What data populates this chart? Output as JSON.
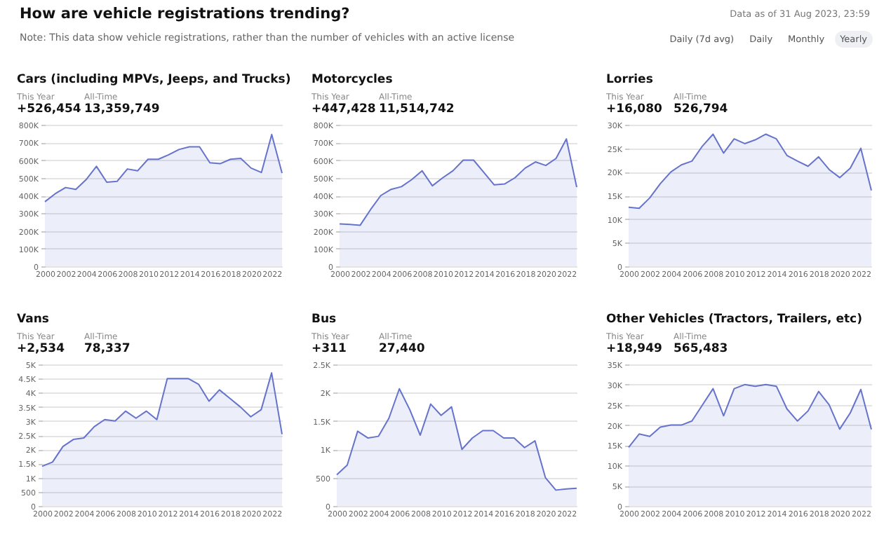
{
  "chart_data": [
    {
      "type": "other",
      "title": "How are vehicle registrations trending?",
      "subtitle": "Note: This data show vehicle registrations, rather than the number of vehicles with an active license",
      "annotations": [
        "Data as of 31 Aug 2023, 23:59",
        "Daily (7d avg)",
        "Daily",
        "Monthly",
        "Yearly"
      ]
    },
    {
      "type": "area",
      "title": "Cars (including MPVs, Jeeps, and Trucks)",
      "annotations": [
        "This Year",
        "+526,454",
        "All-Time",
        "13,359,749"
      ],
      "x": [
        2000,
        2001,
        2002,
        2003,
        2004,
        2005,
        2006,
        2007,
        2008,
        2009,
        2010,
        2011,
        2012,
        2013,
        2014,
        2015,
        2016,
        2017,
        2018,
        2019,
        2020,
        2021,
        2022,
        2023
      ],
      "series": [
        {
          "color": "#6673cc",
          "values": [
            365000,
            410000,
            445000,
            435000,
            490000,
            565000,
            475000,
            480000,
            550000,
            540000,
            605000,
            605000,
            630000,
            660000,
            675000,
            675000,
            585000,
            580000,
            605000,
            610000,
            555000,
            530000,
            745000,
            526454
          ]
        }
      ],
      "xlim": [
        2000,
        2023
      ],
      "xticks": [
        2000,
        2002,
        2004,
        2006,
        2008,
        2010,
        2012,
        2014,
        2016,
        2018,
        2020,
        2022
      ],
      "ylim": [
        0,
        800000
      ],
      "yticks": [
        {
          "value": 0,
          "label": "0"
        },
        {
          "value": 100000,
          "label": "100K"
        },
        {
          "value": 200000,
          "label": "200K"
        },
        {
          "value": 300000,
          "label": "300K"
        },
        {
          "value": 400000,
          "label": "400K"
        },
        {
          "value": 500000,
          "label": "500K"
        },
        {
          "value": 600000,
          "label": "600K"
        },
        {
          "value": 700000,
          "label": "700K"
        },
        {
          "value": 800000,
          "label": "800K"
        }
      ],
      "grid": "y"
    },
    {
      "type": "area",
      "title": "Motorcycles",
      "annotations": [
        "This Year",
        "+447,428",
        "All-Time",
        "11,514,742"
      ],
      "x": [
        2000,
        2001,
        2002,
        2003,
        2004,
        2005,
        2006,
        2007,
        2008,
        2009,
        2010,
        2011,
        2012,
        2013,
        2014,
        2015,
        2016,
        2017,
        2018,
        2019,
        2020,
        2021,
        2022,
        2023
      ],
      "series": [
        {
          "color": "#6673cc",
          "values": [
            240000,
            237000,
            232000,
            320000,
            400000,
            435000,
            450000,
            490000,
            540000,
            455000,
            500000,
            540000,
            600000,
            600000,
            530000,
            460000,
            465000,
            500000,
            555000,
            590000,
            570000,
            610000,
            720000,
            447428
          ]
        }
      ],
      "xlim": [
        2000,
        2023
      ],
      "xticks": [
        2000,
        2002,
        2004,
        2006,
        2008,
        2010,
        2012,
        2014,
        2016,
        2018,
        2020,
        2022
      ],
      "ylim": [
        0,
        800000
      ],
      "yticks": [
        {
          "value": 0,
          "label": "0"
        },
        {
          "value": 100000,
          "label": "100K"
        },
        {
          "value": 200000,
          "label": "200K"
        },
        {
          "value": 300000,
          "label": "300K"
        },
        {
          "value": 400000,
          "label": "400K"
        },
        {
          "value": 500000,
          "label": "500K"
        },
        {
          "value": 600000,
          "label": "600K"
        },
        {
          "value": 700000,
          "label": "700K"
        },
        {
          "value": 800000,
          "label": "800K"
        }
      ],
      "grid": "y"
    },
    {
      "type": "area",
      "title": "Lorries",
      "annotations": [
        "This Year",
        "+16,080",
        "All-Time",
        "526,794"
      ],
      "x": [
        2000,
        2001,
        2002,
        2003,
        2004,
        2005,
        2006,
        2007,
        2008,
        2009,
        2010,
        2011,
        2012,
        2013,
        2014,
        2015,
        2016,
        2017,
        2018,
        2019,
        2020,
        2021,
        2022,
        2023
      ],
      "series": [
        {
          "color": "#6673cc",
          "values": [
            12500,
            12300,
            14500,
            17500,
            20000,
            21500,
            22300,
            25500,
            28000,
            24000,
            27000,
            26000,
            26800,
            28000,
            27000,
            23500,
            22300,
            21200,
            23200,
            20500,
            18800,
            20800,
            25000,
            16080
          ]
        }
      ],
      "xlim": [
        2000,
        2023
      ],
      "xticks": [
        2000,
        2002,
        2004,
        2006,
        2008,
        2010,
        2012,
        2014,
        2016,
        2018,
        2020,
        2022
      ],
      "ylim": [
        0,
        30000
      ],
      "yticks": [
        {
          "value": 0,
          "label": "0"
        },
        {
          "value": 5000,
          "label": "5K"
        },
        {
          "value": 10000,
          "label": "10K"
        },
        {
          "value": 15000,
          "label": "15K"
        },
        {
          "value": 20000,
          "label": "20K"
        },
        {
          "value": 25000,
          "label": "25K"
        },
        {
          "value": 30000,
          "label": "30K"
        }
      ],
      "grid": "y"
    },
    {
      "type": "area",
      "title": "Vans",
      "annotations": [
        "This Year",
        "+2,534",
        "All-Time",
        "78,337"
      ],
      "x": [
        2000,
        2001,
        2002,
        2003,
        2004,
        2005,
        2006,
        2007,
        2008,
        2009,
        2010,
        2011,
        2012,
        2013,
        2014,
        2015,
        2016,
        2017,
        2018,
        2019,
        2020,
        2021,
        2022,
        2023
      ],
      "series": [
        {
          "color": "#6673cc",
          "values": [
            1400,
            1550,
            2100,
            2350,
            2400,
            2800,
            3050,
            3000,
            3350,
            3100,
            3350,
            3050,
            4500,
            4500,
            4500,
            4300,
            3700,
            4100,
            3800,
            3500,
            3150,
            3400,
            4700,
            2534
          ]
        }
      ],
      "xlim": [
        2000,
        2023
      ],
      "xticks": [
        2000,
        2002,
        2004,
        2006,
        2008,
        2010,
        2012,
        2014,
        2016,
        2018,
        2020,
        2022
      ],
      "ylim": [
        0,
        5000
      ],
      "yticks": [
        {
          "value": 0,
          "label": "0"
        },
        500,
        {
          "value": 1000,
          "label": "1K"
        },
        {
          "value": 1500,
          "label": "1.5K"
        },
        {
          "value": 2000,
          "label": "2K"
        },
        {
          "value": 2500,
          "label": "2.5K"
        },
        {
          "value": 3000,
          "label": "3K"
        },
        {
          "value": 3500,
          "label": "3.5K"
        },
        {
          "value": 4000,
          "label": "4K"
        },
        {
          "value": 4500,
          "label": "4.5K"
        },
        {
          "value": 5000,
          "label": "5K"
        }
      ],
      "grid": "y"
    },
    {
      "type": "area",
      "title": "Bus",
      "annotations": [
        "This Year",
        "+311",
        "All-Time",
        "27,440"
      ],
      "x": [
        2000,
        2001,
        2002,
        2003,
        2004,
        2005,
        2006,
        2007,
        2008,
        2009,
        2010,
        2011,
        2012,
        2013,
        2014,
        2015,
        2016,
        2017,
        2018,
        2019,
        2020,
        2021,
        2022,
        2023
      ],
      "series": [
        {
          "color": "#6673cc",
          "values": [
            550,
            720,
            1320,
            1200,
            1230,
            1550,
            2070,
            1700,
            1250,
            1800,
            1600,
            1750,
            1000,
            1200,
            1330,
            1330,
            1200,
            1200,
            1030,
            1150,
            500,
            280,
            300,
            311
          ]
        }
      ],
      "xlim": [
        2000,
        2023
      ],
      "xticks": [
        2000,
        2002,
        2004,
        2006,
        2008,
        2010,
        2012,
        2014,
        2016,
        2018,
        2020,
        2022
      ],
      "ylim": [
        0,
        2500
      ],
      "yticks": [
        {
          "value": 0,
          "label": "0"
        },
        500,
        {
          "value": 1000,
          "label": "1K"
        },
        {
          "value": 1500,
          "label": "1.5K"
        },
        {
          "value": 2000,
          "label": "2K"
        },
        {
          "value": 2500,
          "label": "2.5K"
        }
      ],
      "grid": "y"
    },
    {
      "type": "area",
      "title": "Other Vehicles (Tractors, Trailers, etc)",
      "annotations": [
        "This Year",
        "+18,949",
        "All-Time",
        "565,483"
      ],
      "x": [
        2000,
        2001,
        2002,
        2003,
        2004,
        2005,
        2006,
        2007,
        2008,
        2009,
        2010,
        2011,
        2012,
        2013,
        2014,
        2015,
        2016,
        2017,
        2018,
        2019,
        2020,
        2021,
        2022,
        2023
      ],
      "series": [
        {
          "color": "#6673cc",
          "values": [
            14500,
            17800,
            17200,
            19500,
            20000,
            20000,
            21000,
            25000,
            29000,
            22300,
            29000,
            30000,
            29600,
            30000,
            29600,
            24000,
            21000,
            23500,
            28300,
            25000,
            19000,
            23000,
            28800,
            18949
          ]
        }
      ],
      "xlim": [
        2000,
        2023
      ],
      "xticks": [
        2000,
        2002,
        2004,
        2006,
        2008,
        2010,
        2012,
        2014,
        2016,
        2018,
        2020,
        2022
      ],
      "ylim": [
        0,
        35000
      ],
      "yticks": [
        {
          "value": 0,
          "label": "0"
        },
        {
          "value": 5000,
          "label": "5K"
        },
        {
          "value": 10000,
          "label": "10K"
        },
        {
          "value": 15000,
          "label": "15K"
        },
        {
          "value": 20000,
          "label": "20K"
        },
        {
          "value": 25000,
          "label": "25K"
        },
        {
          "value": 30000,
          "label": "30K"
        },
        {
          "value": 35000,
          "label": "35K"
        }
      ],
      "grid": "y"
    }
  ]
}
